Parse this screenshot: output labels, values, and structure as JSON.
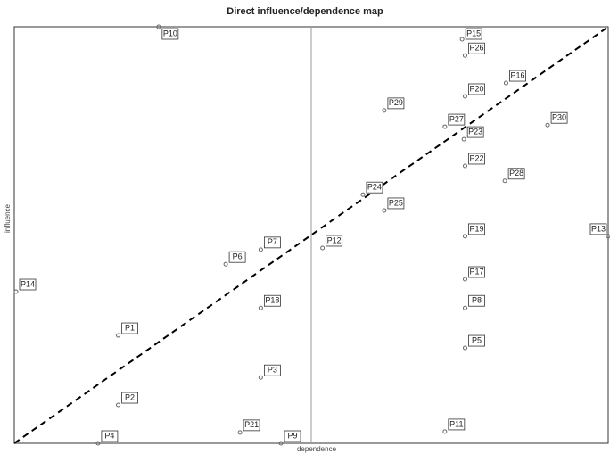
{
  "chart_data": {
    "type": "scatter",
    "title": "Direct influence/dependence map",
    "x_label": "dependence",
    "y_label": "influence",
    "xlim": [
      0,
      100
    ],
    "ylim": [
      0,
      100
    ],
    "series": [
      {
        "color": "#666666",
        "labels": [
          "P10",
          "P15",
          "P26",
          "P16",
          "P20",
          "P29",
          "P30",
          "P27",
          "P23",
          "P22",
          "P28",
          "P25",
          "P24",
          "P19",
          "P13",
          "P12",
          "P7",
          "P6",
          "P14",
          "P17",
          "P18",
          "P8",
          "P1",
          "P5",
          "P3",
          "P2",
          "P11",
          "P21",
          "P4",
          "P9"
        ],
        "x": [
          24.3,
          75.4,
          75.9,
          82.8,
          75.9,
          62.3,
          89.8,
          72.5,
          75.7,
          75.9,
          82.6,
          62.3,
          58.7,
          75.9,
          100,
          51.9,
          41.5,
          35.6,
          0.3,
          75.9,
          41.5,
          75.9,
          17.5,
          75.9,
          41.5,
          17.5,
          72.5,
          38.0,
          14.1,
          44.9
        ],
        "values": [
          100,
          97.0,
          93.1,
          86.5,
          83.3,
          79.9,
          76.4,
          76.0,
          73.0,
          66.6,
          63.0,
          55.9,
          59.7,
          49.7,
          49.7,
          46.9,
          46.5,
          43.0,
          36.4,
          39.4,
          32.5,
          32.5,
          25.9,
          22.9,
          15.8,
          9.2,
          2.8,
          2.6,
          0,
          0
        ]
      }
    ]
  }
}
